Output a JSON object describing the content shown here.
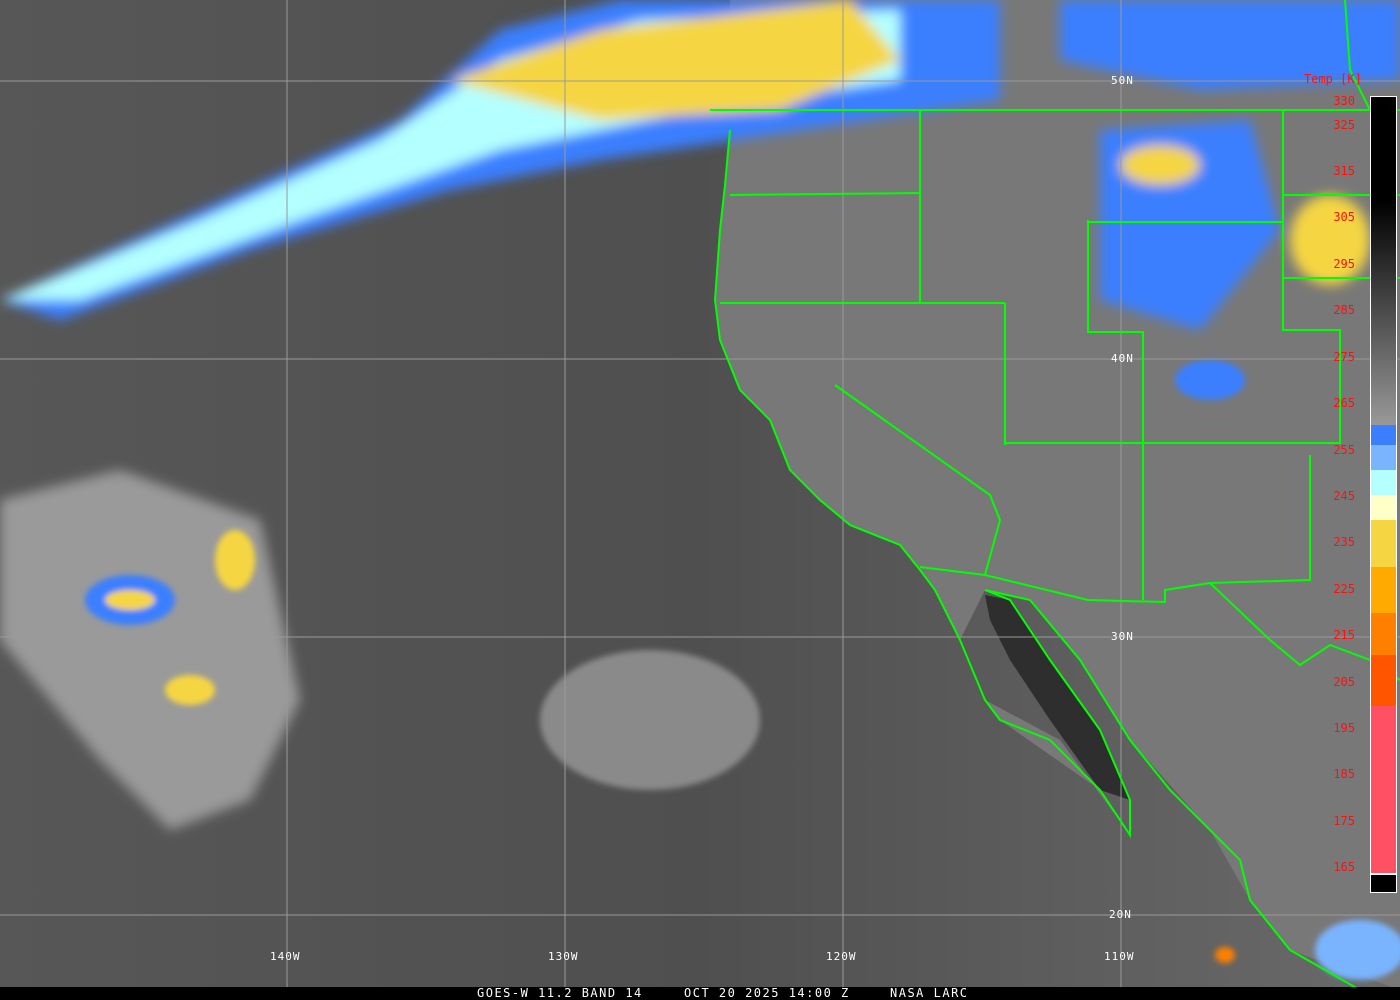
{
  "product": {
    "satellite_label": "GOES-W 11.2 BAND 14",
    "datetime_label": "OCT 20 2025 14:00 Z",
    "credit_label": "NASA LARC"
  },
  "colorbar": {
    "title": "Temp [K]",
    "ticks": [
      "330",
      "325",
      "315",
      "305",
      "295",
      "285",
      "275",
      "265",
      "255",
      "245",
      "235",
      "225",
      "215",
      "205",
      "195",
      "185",
      "175",
      "165"
    ],
    "colors": {
      "blue": "#3b7fff",
      "light_blue": "#7ab4ff",
      "cyan": "#b4ffff",
      "pale_yellow": "#ffffc8",
      "yellow": "#f5d642",
      "orange": "#ffaa00",
      "dark_orange": "#ff7f00",
      "red_orange": "#ff5500",
      "pink": "#ff5064"
    }
  },
  "grid": {
    "latitudes": [
      "50N",
      "40N",
      "30N",
      "20N"
    ],
    "longitudes": [
      "140W",
      "130W",
      "120W",
      "110W"
    ]
  },
  "overlay_color": "#00ff00"
}
